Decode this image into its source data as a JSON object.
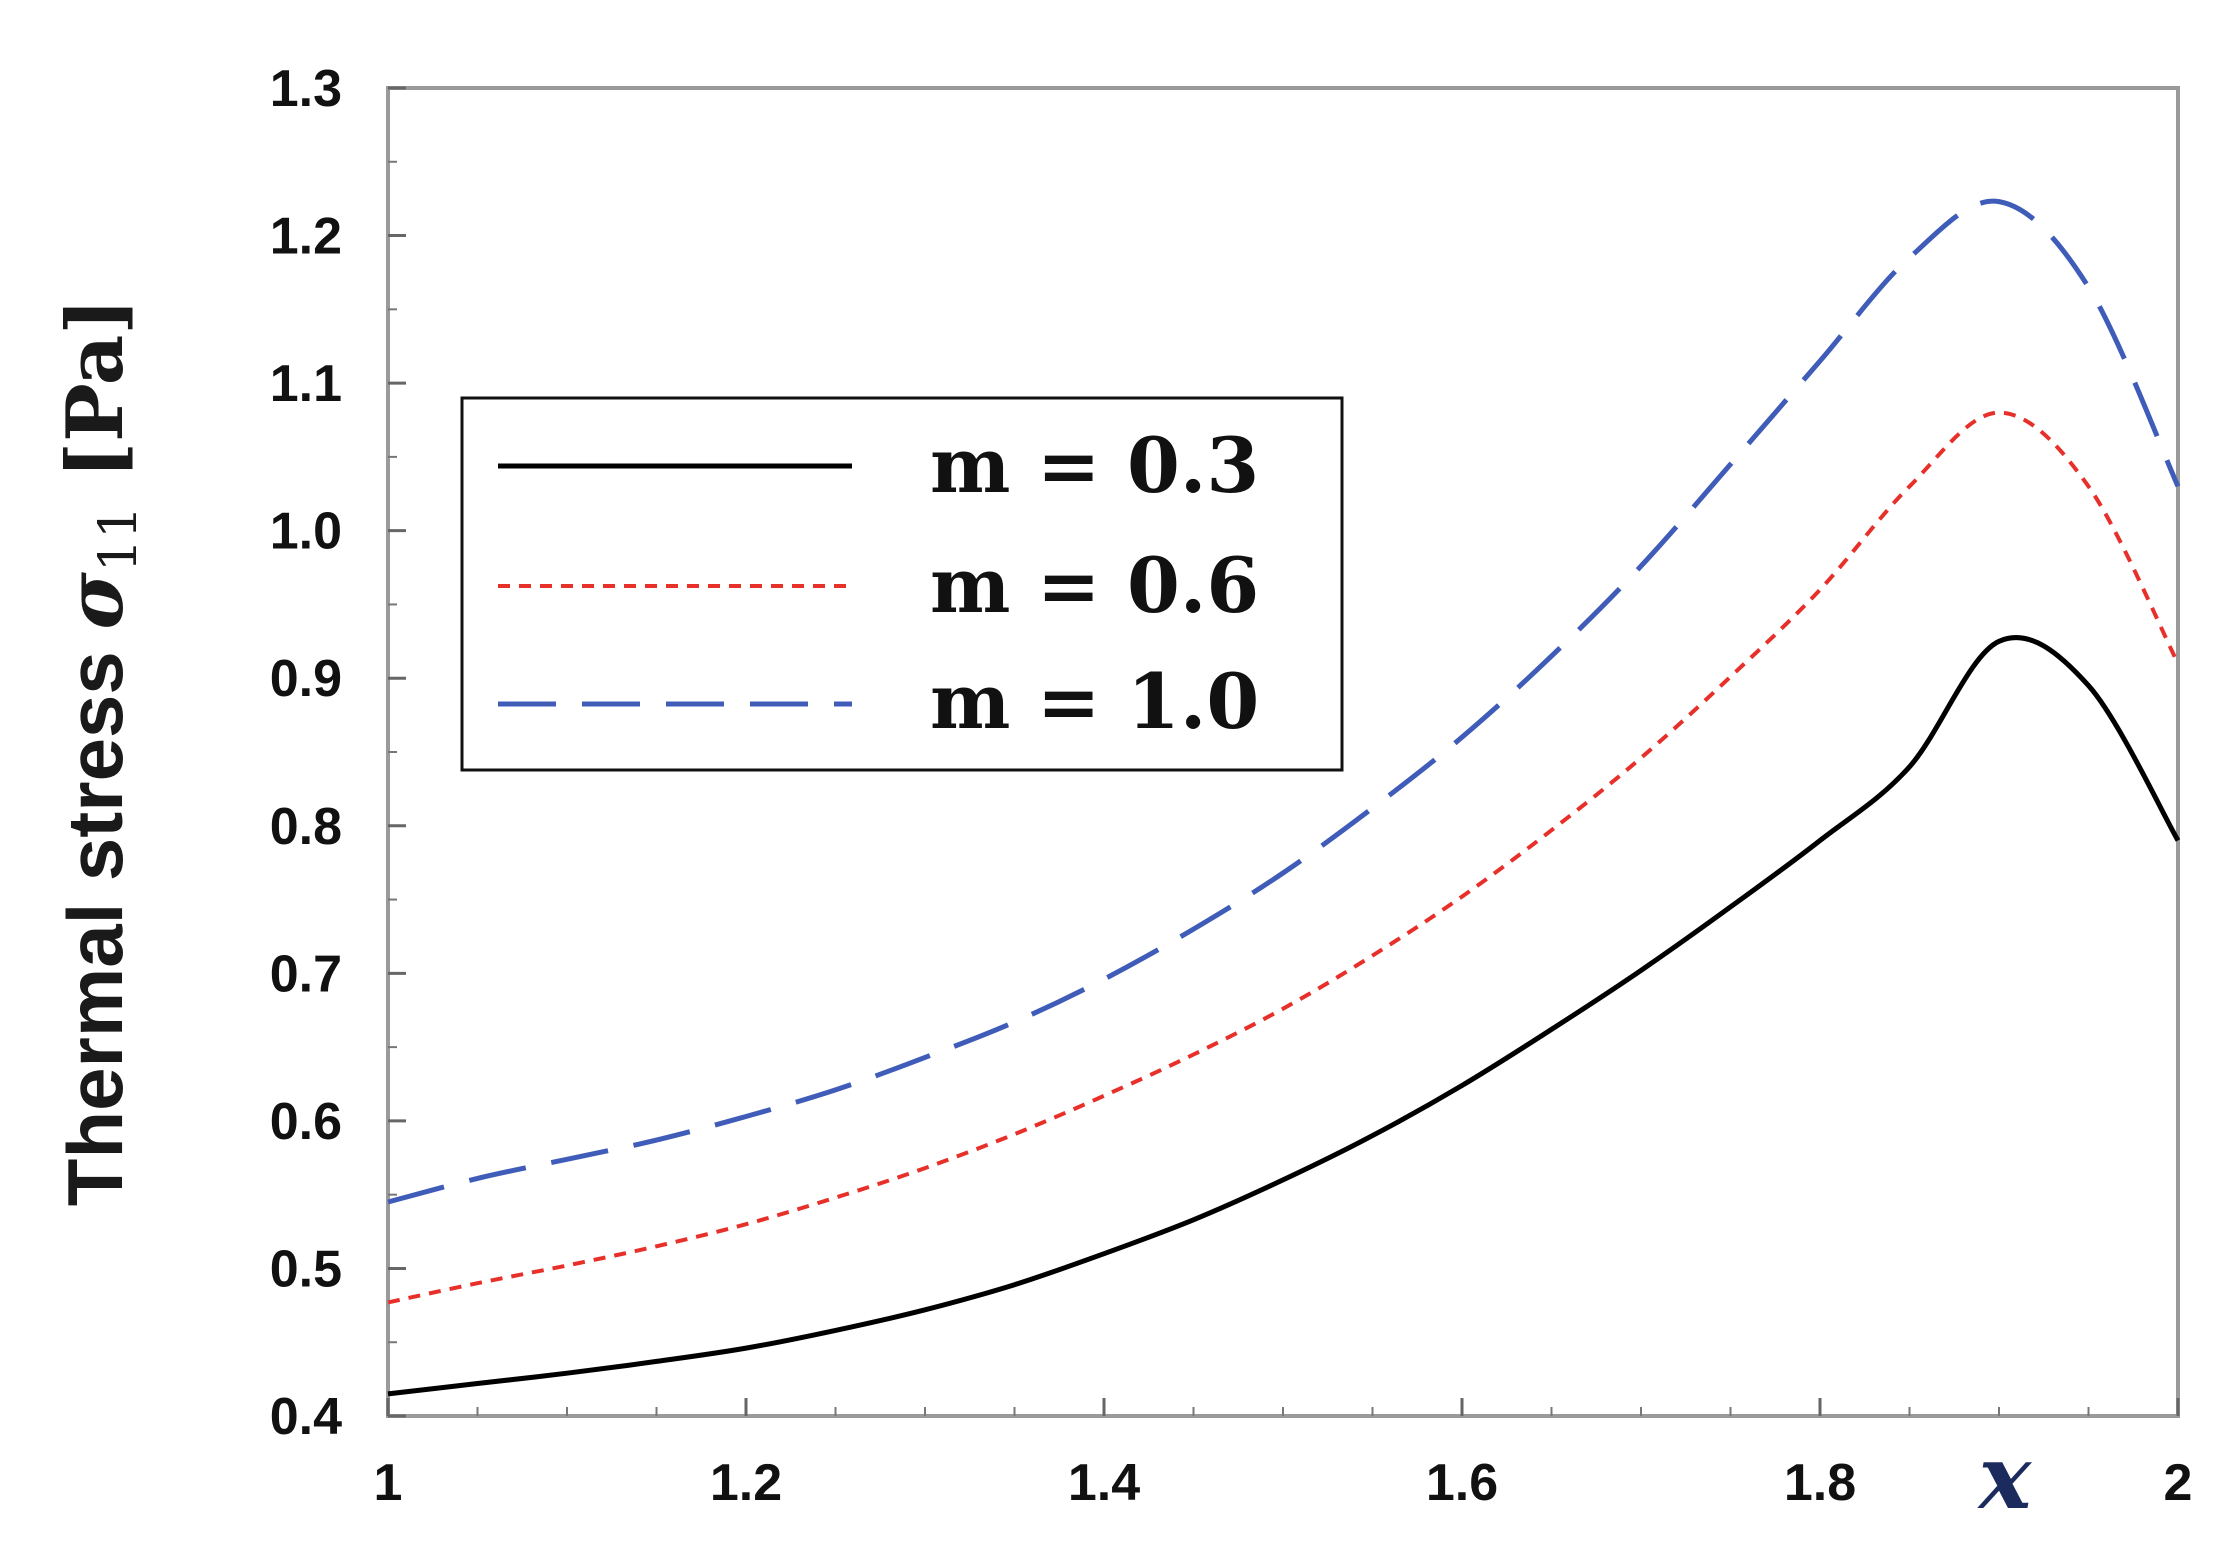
{
  "chart_data": {
    "type": "line",
    "title": "",
    "xlabel": "x",
    "ylabel": {
      "prefix": "Thermal stress ",
      "symbol": "σ",
      "subscript": "11",
      "unit": " [Pa]"
    },
    "xlim": [
      1,
      2
    ],
    "ylim": [
      0.4,
      1.3
    ],
    "x_ticks": [
      1,
      1.2,
      1.4,
      1.6,
      1.8,
      2
    ],
    "x_tick_labels": [
      "1",
      "1.2",
      "1.4",
      "1.6",
      "1.8",
      "2"
    ],
    "y_ticks": [
      0.4,
      0.5,
      0.6,
      0.7,
      0.8,
      0.9,
      1.0,
      1.1,
      1.2,
      1.3
    ],
    "y_tick_labels": [
      "0.4",
      "0.5",
      "0.6",
      "0.7",
      "0.8",
      "0.9",
      "1.0",
      "1.1",
      "1.2",
      "1.3"
    ],
    "grid": false,
    "legend_position": "upper-left",
    "x": [
      1.0,
      1.05,
      1.1,
      1.15,
      1.2,
      1.25,
      1.3,
      1.35,
      1.4,
      1.45,
      1.5,
      1.55,
      1.6,
      1.65,
      1.7,
      1.75,
      1.8,
      1.85,
      1.9,
      1.95,
      2.0
    ],
    "series": [
      {
        "name": "m = 0.3",
        "color": "#000000",
        "dash": "solid",
        "values": [
          0.415,
          0.422,
          0.429,
          0.437,
          0.446,
          0.458,
          0.472,
          0.489,
          0.51,
          0.533,
          0.56,
          0.59,
          0.624,
          0.662,
          0.702,
          0.745,
          0.79,
          0.84,
          0.925,
          0.895,
          0.79
        ]
      },
      {
        "name": "m = 0.6",
        "color": "#e8302a",
        "dash": "short-dash",
        "values": [
          0.477,
          0.49,
          0.502,
          0.515,
          0.53,
          0.548,
          0.568,
          0.591,
          0.617,
          0.645,
          0.676,
          0.712,
          0.752,
          0.797,
          0.846,
          0.901,
          0.96,
          1.03,
          1.08,
          1.03,
          0.91
        ]
      },
      {
        "name": "m = 1.0",
        "color": "#3f5cb8",
        "dash": "long-dash",
        "values": [
          0.545,
          0.561,
          0.574,
          0.587,
          0.603,
          0.621,
          0.643,
          0.667,
          0.696,
          0.73,
          0.768,
          0.812,
          0.86,
          0.915,
          0.976,
          1.045,
          1.115,
          1.185,
          1.223,
          1.165,
          1.03
        ]
      }
    ],
    "legend_labels": [
      "m = 0.3",
      "m = 0.6",
      "m = 1.0"
    ]
  }
}
